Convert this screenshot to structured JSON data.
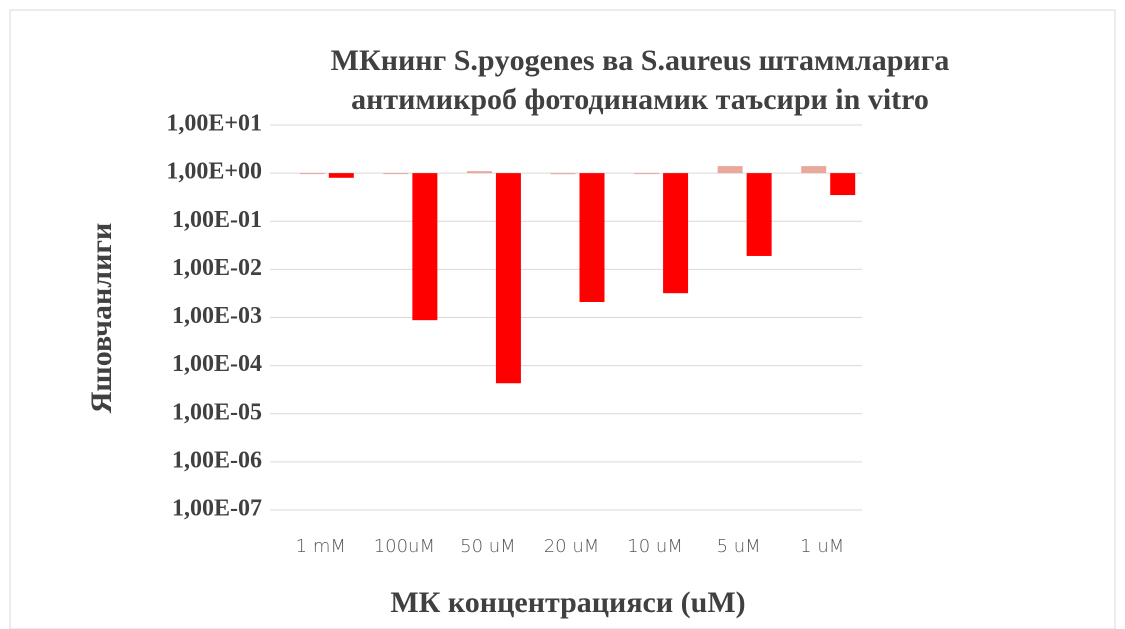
{
  "chart_data": {
    "type": "bar",
    "log_scale": true,
    "grid": true,
    "title": [
      "МКнинг S.pyogenes ва S.aureus  штаммларига",
      "антимикроб фотодинамик таъсири in vitro"
    ],
    "y_label": "Яшовчанлиги",
    "x_label": "МК концентрацияси (uM)",
    "categories": [
      "1 mM",
      "100uM",
      "50 uM",
      "20 uM",
      "10 uM",
      "5 uM",
      "1 uM"
    ],
    "series": [
      {
        "color": "#eaa89c",
        "values": [
          1.0,
          1.0,
          1.1,
          0.95,
          1.0,
          1.4,
          1.4
        ]
      },
      {
        "color": "#ff0000",
        "values": [
          0.8,
          0.00088,
          4.3e-05,
          0.0021,
          0.0032,
          0.019,
          0.35
        ]
      }
    ],
    "ylim": [
      1e-07,
      10
    ],
    "yticks": [
      {
        "value": 10,
        "label": "1,00E+01"
      },
      {
        "value": 1,
        "label": "1,00E+00"
      },
      {
        "value": 0.1,
        "label": "1,00E-01"
      },
      {
        "value": 0.01,
        "label": "1,00E-02"
      },
      {
        "value": 0.001,
        "label": "1,00E-03"
      },
      {
        "value": 0.0001,
        "label": "1,00E-04"
      },
      {
        "value": 1e-05,
        "label": "1,00E-05"
      },
      {
        "value": 1e-06,
        "label": "1,00E-06"
      },
      {
        "value": 1e-07,
        "label": "1,00E-07"
      }
    ]
  }
}
